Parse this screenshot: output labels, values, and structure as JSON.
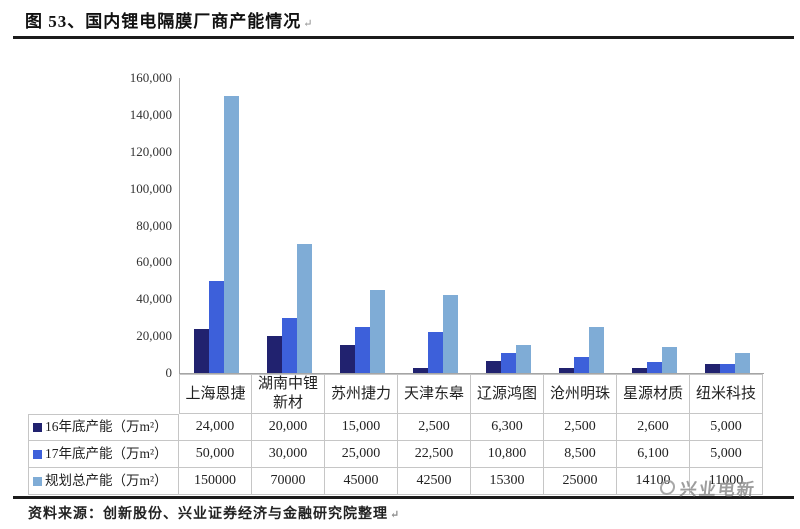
{
  "header": {
    "title": "图 53、国内锂电隔膜厂商产能情况",
    "pilcrow": "↵"
  },
  "chart_data": {
    "type": "bar",
    "title": "图 53、国内锂电隔膜厂商产能情况",
    "categories": [
      "上海恩捷",
      "湖南中锂新材",
      "苏州捷力",
      "天津东皋",
      "辽源鸿图",
      "沧州明珠",
      "星源材质",
      "纽米科技"
    ],
    "series": [
      {
        "key": "cap-end-2016",
        "name": "16年底产能（万m²）",
        "color": "#21226F",
        "values": [
          24000,
          20000,
          15000,
          2500,
          6300,
          2500,
          2600,
          5000
        ],
        "labels": [
          "24,000",
          "20,000",
          "15,000",
          "2,500",
          "6,300",
          "2,500",
          "2,600",
          "5,000"
        ]
      },
      {
        "key": "cap-end-2017",
        "name": "17年底产能（万m²）",
        "color": "#3D60DA",
        "values": [
          50000,
          30000,
          25000,
          22500,
          10800,
          8500,
          6100,
          5000
        ],
        "labels": [
          "50,000",
          "30,000",
          "25,000",
          "22,500",
          "10,800",
          "8,500",
          "6,100",
          "5,000"
        ]
      },
      {
        "key": "planned-total-cap",
        "name": "规划总产能（万m²）",
        "color": "#7FACD6",
        "values": [
          150000,
          70000,
          45000,
          42500,
          15300,
          25000,
          14100,
          11000
        ],
        "labels": [
          "150000",
          "70000",
          "45000",
          "42500",
          "15300",
          "25000",
          "14100",
          "11000"
        ]
      }
    ],
    "ylim": [
      0,
      160000
    ],
    "ytick_step": 20000,
    "ytick_labels": [
      "0",
      "20,000",
      "40,000",
      "60,000",
      "80,000",
      "100,000",
      "120,000",
      "140,000",
      "160,000"
    ],
    "grid": false,
    "legend_position": "data-table-left",
    "unit": "万m²"
  },
  "footer": {
    "source": "资料来源：创新股份、兴业证券经济与金融研究院整理",
    "pilcrow": "↵"
  },
  "watermark": {
    "text": "兴业电新"
  },
  "colors": {
    "axis": "#A5A5A5",
    "table_border": "#C6C6C6",
    "rule": "#1B1B1B",
    "watermark": "#8D8D8D"
  }
}
